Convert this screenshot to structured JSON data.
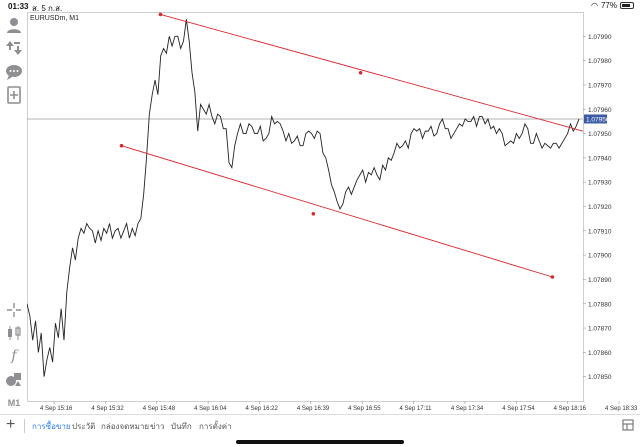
{
  "status_bar": {
    "time": "01:33",
    "date": "ส. 5 ก.ส.",
    "battery_text": "77%",
    "battery_level": 0.77
  },
  "toolbar": {
    "items": [
      "account-icon",
      "trade-arrows-icon",
      "chat-icon",
      "new-order-icon",
      "crosshair-icon",
      "chart-type-icon",
      "indicator-f-icon",
      "objects-icon"
    ],
    "timeframe": "M1"
  },
  "chart": {
    "symbol_label": "EURUSDm, M1",
    "current_price_label": "1.07956",
    "colors": {
      "price_line": "#222222",
      "trendline": "#d9282f",
      "bid_line": "#9a9a9a",
      "price_badge_bg": "#3b5ba5"
    }
  },
  "chart_data": {
    "type": "line",
    "title": "EURUSDm, M1",
    "ylim": [
      1.0784,
      1.08
    ],
    "y_ticks": [
      "1.07990",
      "1.07980",
      "1.07970",
      "1.07960",
      "1.07950",
      "1.07940",
      "1.07930",
      "1.07920",
      "1.07910",
      "1.07900",
      "1.07890",
      "1.07880",
      "1.07870",
      "1.07860",
      "1.07850"
    ],
    "x_ticks": [
      "4 Sep 15:16",
      "4 Sep 15:32",
      "4 Sep 15:48",
      "4 Sep 16:04",
      "4 Sep 16:22",
      "4 Sep 16:39",
      "4 Sep 16:55",
      "4 Sep 17:11",
      "4 Sep 17:34",
      "4 Sep 17:54",
      "4 Sep 18:16",
      "4 Sep 18:33"
    ],
    "series": [
      {
        "values": [
          1.0788,
          1.07875,
          1.07865,
          1.07873,
          1.0786,
          1.07868,
          1.0785,
          1.07857,
          1.07862,
          1.07856,
          1.07872,
          1.07866,
          1.07878,
          1.07865,
          1.07885,
          1.07895,
          1.07903,
          1.07898,
          1.07907,
          1.07911,
          1.07909,
          1.07913,
          1.07911,
          1.0791,
          1.07905,
          1.0791,
          1.07906,
          1.07911,
          1.07909,
          1.07913,
          1.07907,
          1.0791,
          1.07911,
          1.07907,
          1.0791,
          1.07913,
          1.07907,
          1.07911,
          1.07908,
          1.07913,
          1.07915,
          1.07925,
          1.0794,
          1.07958,
          1.07966,
          1.07972,
          1.07966,
          1.07982,
          1.07985,
          1.07983,
          1.0799,
          1.07986,
          1.0799,
          1.0799,
          1.07985,
          1.07988,
          1.07997,
          1.07988,
          1.07975,
          1.07967,
          1.07951,
          1.07962,
          1.0796,
          1.07958,
          1.07962,
          1.07957,
          1.07954,
          1.07958,
          1.07957,
          1.07952,
          1.07952,
          1.07938,
          1.07936,
          1.07945,
          1.0795,
          1.07954,
          1.0795,
          1.0795,
          1.07954,
          1.07953,
          1.0795,
          1.0795,
          1.07953,
          1.07947,
          1.07948,
          1.0795,
          1.07957,
          1.07954,
          1.07955,
          1.07954,
          1.07951,
          1.07947,
          1.0795,
          1.07946,
          1.07947,
          1.07949,
          1.07945,
          1.07945,
          1.0795,
          1.07951,
          1.0795,
          1.07948,
          1.07951,
          1.0795,
          1.07942,
          1.0794,
          1.07935,
          1.07929,
          1.07926,
          1.07922,
          1.07919,
          1.07921,
          1.07926,
          1.07928,
          1.07925,
          1.07928,
          1.07931,
          1.07933,
          1.07935,
          1.0793,
          1.07934,
          1.07933,
          1.07936,
          1.07933,
          1.07931,
          1.07937,
          1.07935,
          1.0794,
          1.07939,
          1.07942,
          1.07946,
          1.07944,
          1.07945,
          1.07947,
          1.07944,
          1.0795,
          1.07952,
          1.07951,
          1.07952,
          1.07948,
          1.07951,
          1.07951,
          1.07953,
          1.07949,
          1.0795,
          1.07954,
          1.07956,
          1.07952,
          1.07952,
          1.07948,
          1.0795,
          1.07952,
          1.07954,
          1.07953,
          1.07956,
          1.07955,
          1.07955,
          1.07957,
          1.07953,
          1.07957,
          1.07957,
          1.07954,
          1.07956,
          1.07952,
          1.07953,
          1.0795,
          1.07952,
          1.0795,
          1.07945,
          1.07946,
          1.07947,
          1.07946,
          1.0795,
          1.07948,
          1.0795,
          1.07954,
          1.07952,
          1.07946,
          1.07946,
          1.0795,
          1.07947,
          1.07944,
          1.07946,
          1.07945,
          1.07944,
          1.07946,
          1.07946,
          1.07944,
          1.07946,
          1.07948,
          1.0795,
          1.07954,
          1.07951,
          1.07953,
          1.07956
        ]
      }
    ],
    "current_price": 1.07956,
    "trendlines": [
      {
        "x1": 0.24,
        "y1": 1.07999,
        "x2": 1.0,
        "y2": 1.07951
      },
      {
        "x1": 0.17,
        "y1": 1.07945,
        "x2": 0.945,
        "y2": 1.07891
      }
    ],
    "trendline_points": [
      {
        "x": 0.24,
        "y": 1.07999
      },
      {
        "x": 0.6,
        "y": 1.07975
      },
      {
        "x": 0.17,
        "y": 1.07945
      },
      {
        "x": 0.515,
        "y": 1.07917
      },
      {
        "x": 0.945,
        "y": 1.07891
      }
    ]
  },
  "tabs": {
    "items": [
      "การซื้อขาย",
      "ประวัติ",
      "กล่องจดหมาย",
      "ข่าว",
      "บันทึก",
      "การตั้งค่า"
    ],
    "active_index": 0
  }
}
